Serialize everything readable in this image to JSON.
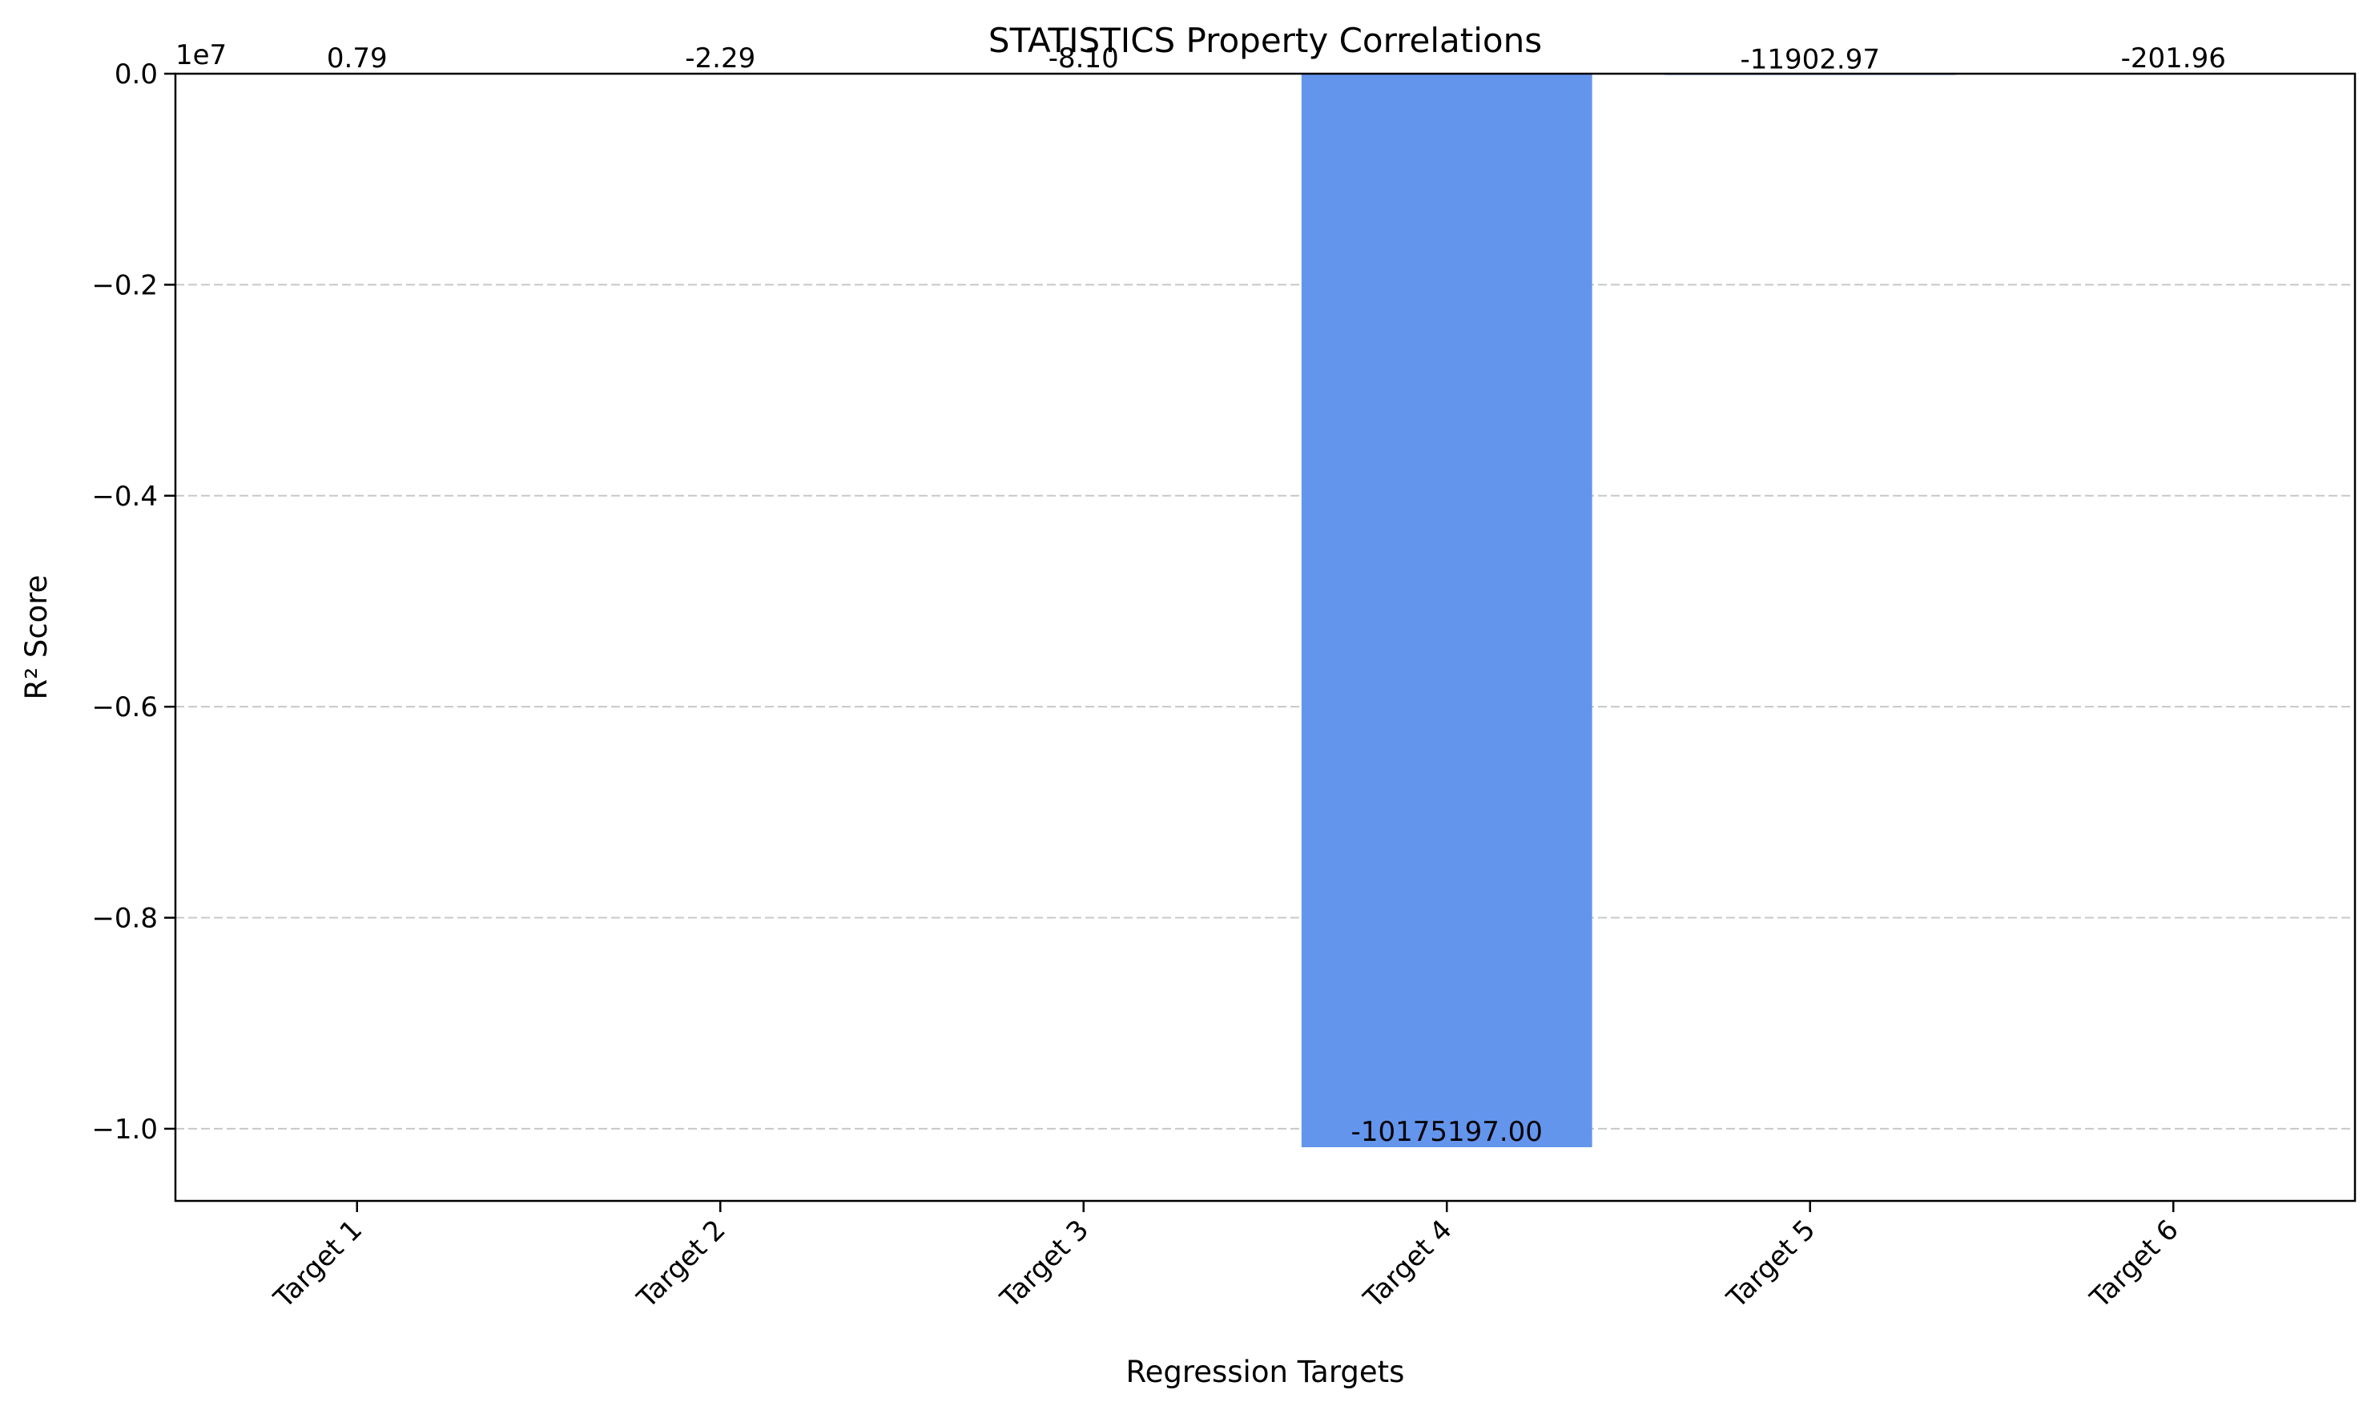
{
  "chart_data": {
    "type": "bar",
    "title": "STATISTICS Property Correlations",
    "xlabel": "Regression Targets",
    "ylabel": "R² Score",
    "categories": [
      "Target 1",
      "Target 2",
      "Target 3",
      "Target 4",
      "Target 5",
      "Target 6"
    ],
    "values": [
      0.79,
      -2.29,
      -8.1,
      -10175197.0,
      -11902.97,
      -201.96
    ],
    "value_labels": [
      "0.79",
      "-2.29",
      "-8.10",
      "-10175197.00",
      "-11902.97",
      "-201.96"
    ],
    "y_scale_multiplier": "1e7",
    "ylim": [
      -10683956.85,
      0.79
    ],
    "y_ticks": [
      0,
      -2000000,
      -4000000,
      -6000000,
      -8000000,
      -10000000
    ],
    "y_tick_labels": [
      "0.0",
      "−0.2",
      "−0.4",
      "−0.6",
      "−0.8",
      "−1.0"
    ],
    "bar_color": "#6495ed",
    "grid": "y-dashed",
    "legend": "none"
  }
}
